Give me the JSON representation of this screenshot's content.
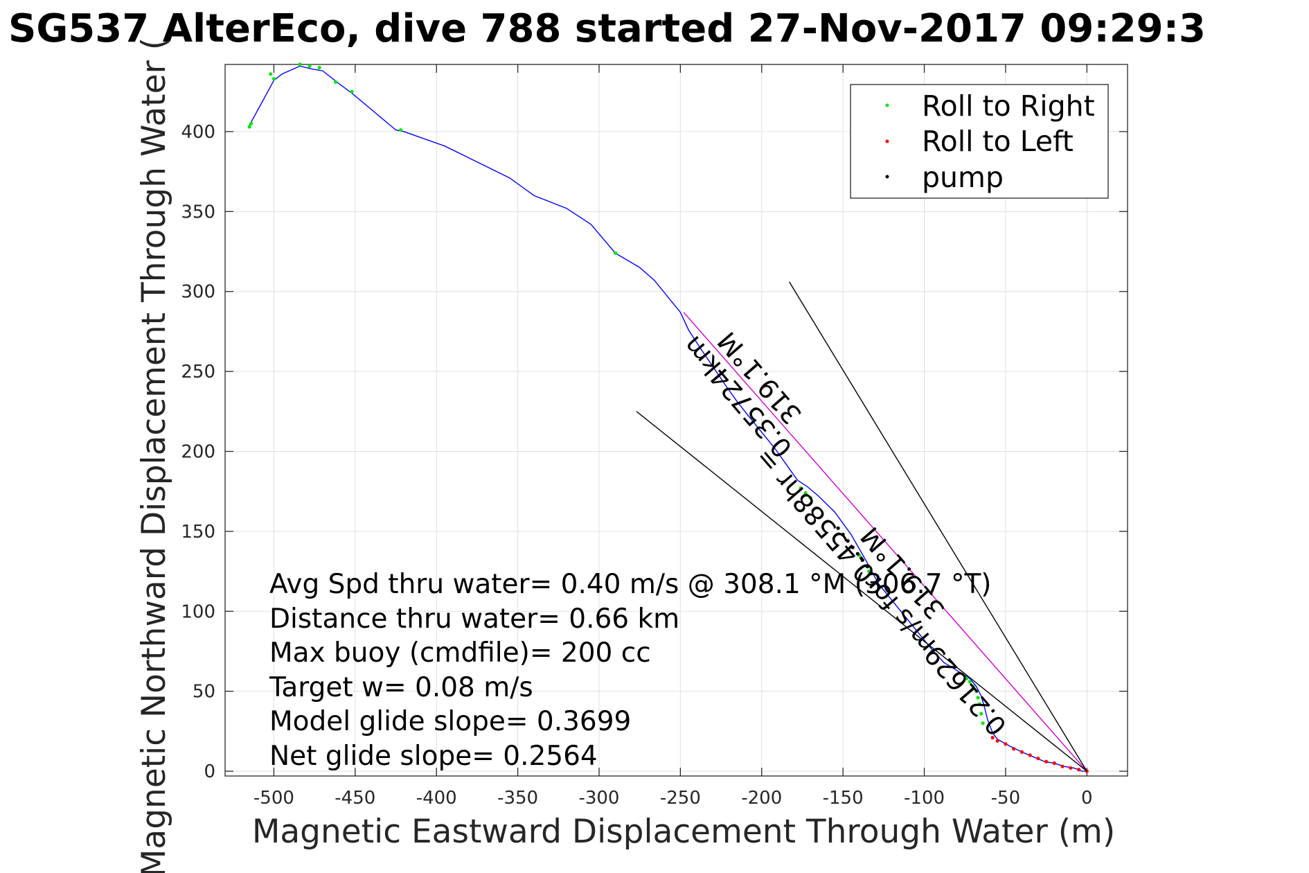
{
  "chart_data": {
    "type": "line",
    "title": "SG537 AlterEco, dive 788 started 27-Nov-2017 09:29:3",
    "xlabel": "Magnetic Eastward Displacement Through Water (m)",
    "ylabel": "Magnetic Northward Displacement Through Water (",
    "xlim": [
      -530,
      25
    ],
    "ylim": [
      -3,
      442
    ],
    "xticks": [
      -500,
      -450,
      -400,
      -350,
      -300,
      -250,
      -200,
      -150,
      -100,
      -50,
      0
    ],
    "xtick_labels": [
      "-500",
      "-450",
      "-400",
      "-350",
      "-300",
      "-250",
      "-200",
      "-150",
      "-100",
      "-50",
      "0"
    ],
    "yticks": [
      0,
      50,
      100,
      150,
      200,
      250,
      300,
      350,
      400
    ],
    "ytick_labels": [
      "0",
      "50",
      "100",
      "150",
      "200",
      "250",
      "300",
      "350",
      "400"
    ],
    "grid": true,
    "legend_position": "top-right",
    "legend": [
      {
        "label": "Roll to Right",
        "color": "#00e600"
      },
      {
        "label": "Roll to Left",
        "color": "#ff0000"
      },
      {
        "label": "pump",
        "color": "#000000"
      }
    ],
    "series": [
      {
        "type": "line",
        "color": "#0000ff",
        "x": [
          0,
          -3,
          -8,
          -14,
          -20,
          -26,
          -33,
          -40,
          -48,
          -55,
          -58,
          -61,
          -63,
          -65,
          -68,
          -72,
          -80,
          -88,
          -96,
          -104,
          -112,
          -120,
          -128,
          -136,
          -145,
          -155,
          -165,
          -172,
          -178,
          -185,
          -192,
          -200,
          -208,
          -215,
          -222,
          -230,
          -238,
          -245,
          -250,
          -258,
          -266,
          -275,
          -290,
          -305,
          -320,
          -340,
          -355,
          -375,
          -395,
          -420,
          -425,
          -452,
          -460,
          -470,
          -476,
          -484,
          -495,
          -500,
          -515
        ],
        "y": [
          0,
          0,
          2,
          3,
          5,
          6,
          9,
          12,
          16,
          20,
          24,
          32,
          40,
          47,
          53,
          58,
          63,
          68,
          77,
          87,
          97,
          107,
          117,
          132,
          148,
          162,
          172,
          178,
          182,
          192,
          202,
          212,
          222,
          231,
          241,
          253,
          265,
          276,
          287,
          297,
          307,
          315,
          324,
          342,
          352,
          360,
          371,
          381,
          391,
          400,
          401,
          424,
          430,
          438,
          439,
          441,
          436,
          432,
          404
        ]
      },
      {
        "type": "scatter",
        "name": "Roll to Right",
        "color": "#00e600",
        "x": [
          -64,
          -65,
          -66,
          -67,
          -68,
          -70,
          -72,
          -74,
          -128,
          -134,
          -140,
          -170,
          -173,
          -176,
          -290,
          -422,
          -452,
          -462,
          -472,
          -478,
          -484,
          -500,
          -502,
          -514,
          -515
        ],
        "y": [
          30,
          36,
          42,
          46,
          50,
          53,
          56,
          58,
          115,
          125,
          135,
          171,
          174,
          177,
          324,
          401,
          425,
          431,
          440,
          441,
          442,
          433,
          436,
          405,
          403
        ]
      },
      {
        "type": "scatter",
        "name": "Roll to Left",
        "color": "#ff0000",
        "x": [
          0,
          -5,
          -10,
          -15,
          -20,
          -25,
          -30,
          -35,
          -40,
          -45,
          -50,
          -55,
          -58
        ],
        "y": [
          0,
          1,
          2,
          3,
          5,
          6,
          8,
          10,
          12,
          14,
          17,
          19,
          21
        ]
      },
      {
        "type": "scatter",
        "name": "pump",
        "color": "#000000",
        "x": [
          -135,
          -138,
          -141,
          -144,
          -147,
          -150,
          -153
        ],
        "y": [
          128,
          132,
          136,
          140,
          144,
          148,
          152
        ]
      },
      {
        "type": "line",
        "color": "#cc00cc",
        "x": [
          0,
          -248
        ],
        "y": [
          0,
          287
        ]
      },
      {
        "type": "line",
        "color": "#000000",
        "x": [
          0,
          -183
        ],
        "y": [
          0,
          306
        ]
      },
      {
        "type": "line",
        "color": "#000000",
        "x": [
          0,
          -277
        ],
        "y": [
          0,
          225
        ]
      }
    ],
    "rotated_labels": [
      {
        "lines": [
          "0.35724km",
          "319.1°M"
        ],
        "x": -208,
        "y": 240,
        "angle_deg": 49.2
      },
      {
        "lines": [
          "0.21629m/s for0.45588hr =",
          "319.1°M"
        ],
        "x": -120,
        "y": 118,
        "angle_deg": 49.2
      }
    ],
    "annotations": [
      "Avg Spd thru water=  0.40 m/s @ 308.1 °M (306.7 °T)",
      "Distance thru water=  0.66 km",
      "Max buoy (cmdfile)= 200 cc",
      "Target w= 0.08 m/s",
      "Model glide slope= 0.3699",
      "Net glide slope= 0.2564"
    ]
  }
}
